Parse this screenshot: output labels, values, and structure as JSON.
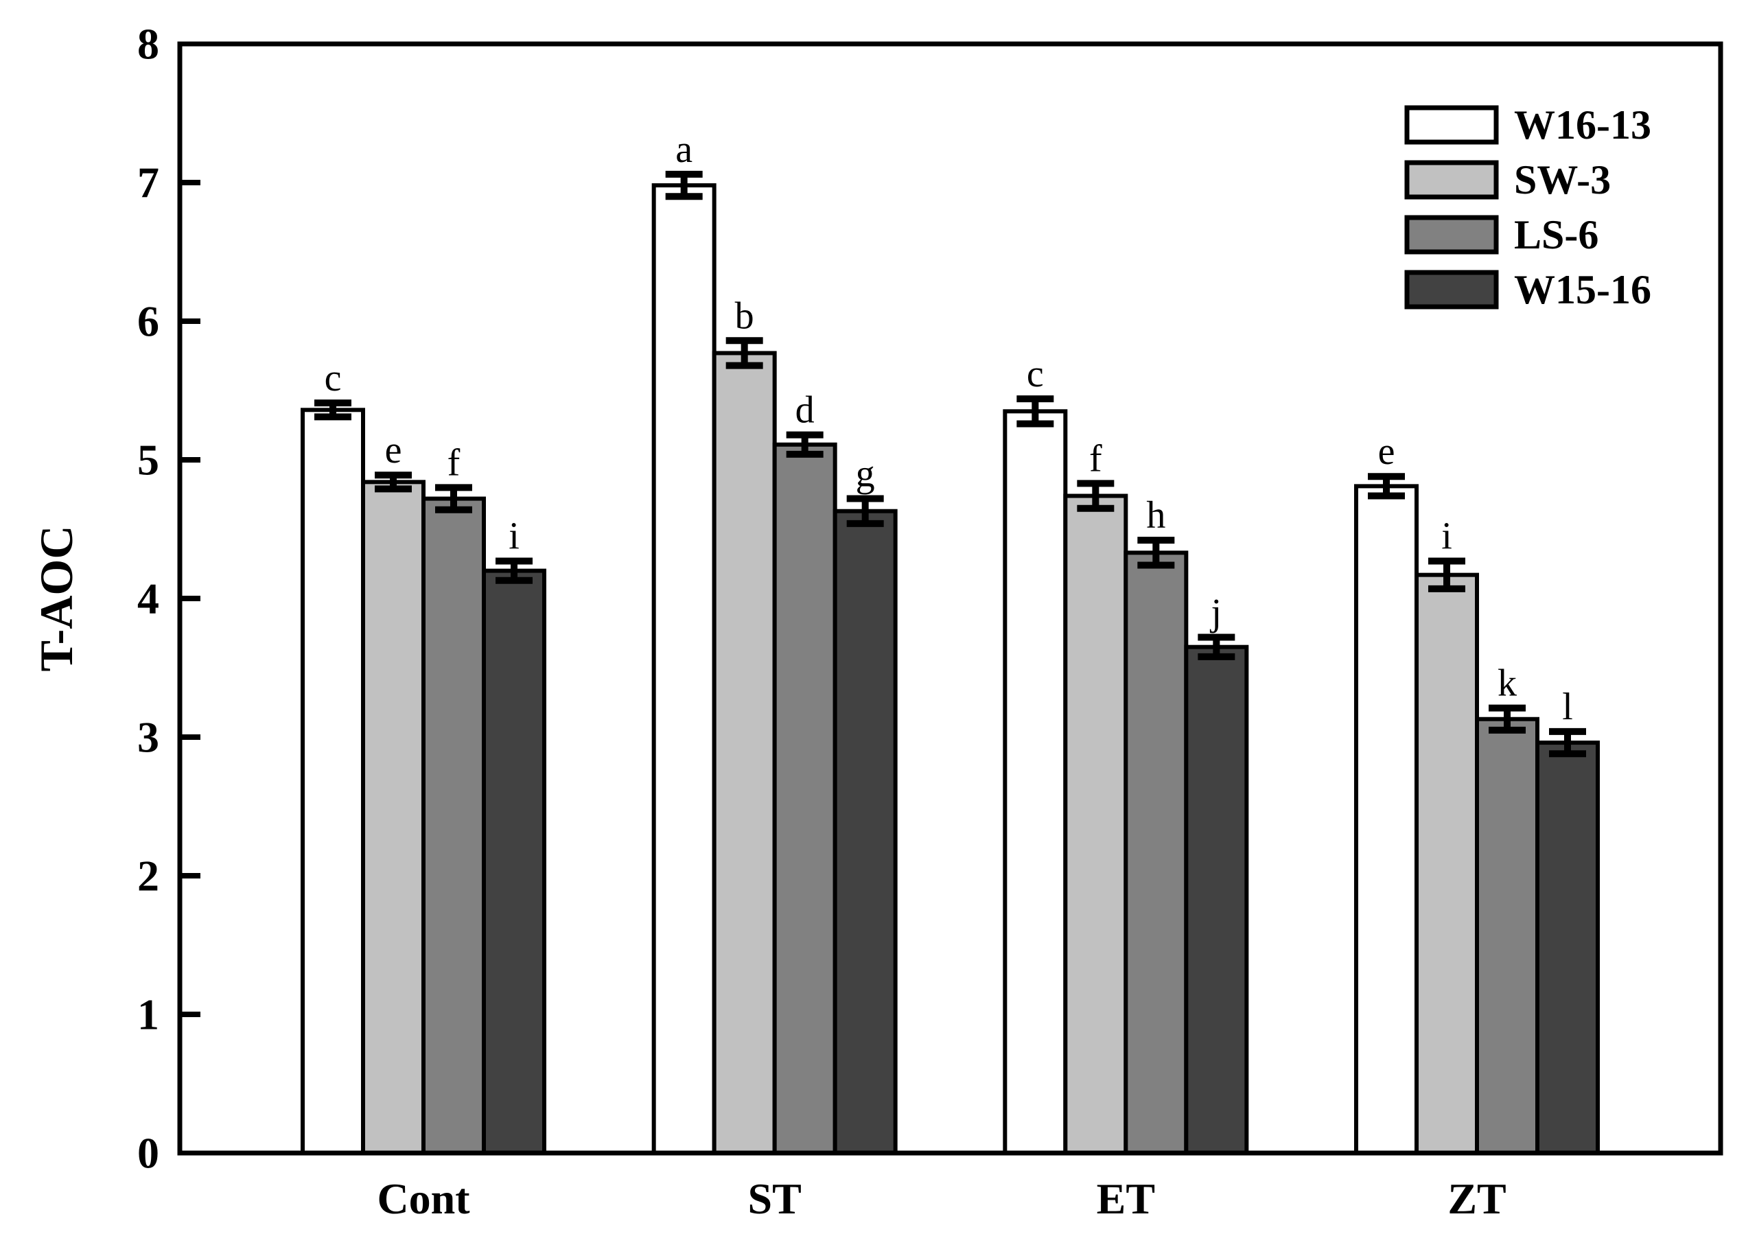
{
  "figure": {
    "background": "#ffffff",
    "ink": "#000000"
  },
  "chart_data": {
    "type": "bar",
    "title": "",
    "xlabel": "",
    "ylabel": "T-AOC",
    "ylim": [
      0,
      8
    ],
    "yticks": [
      "0",
      "1",
      "2",
      "3",
      "4",
      "5",
      "6",
      "7",
      "8"
    ],
    "grid": false,
    "legend_position": "top-right",
    "categories": [
      "Cont",
      "ST",
      "ET",
      "ZT"
    ],
    "series": [
      {
        "name": "W16-13",
        "fill": "#ffffff",
        "values": [
          5.36,
          6.98,
          5.35,
          4.81
        ],
        "errors": [
          0.05,
          0.08,
          0.09,
          0.07
        ],
        "letters": [
          "c",
          "a",
          "c",
          "e"
        ]
      },
      {
        "name": "SW-3",
        "fill": "#c1c1c1",
        "values": [
          4.84,
          5.77,
          4.74,
          4.17
        ],
        "errors": [
          0.05,
          0.09,
          0.09,
          0.1
        ],
        "letters": [
          "e",
          "b",
          "f",
          "i"
        ]
      },
      {
        "name": "LS-6",
        "fill": "#818181",
        "values": [
          4.72,
          5.11,
          4.33,
          3.13
        ],
        "errors": [
          0.08,
          0.07,
          0.09,
          0.08
        ],
        "letters": [
          "f",
          "d",
          "h",
          "k"
        ]
      },
      {
        "name": "W15-16",
        "fill": "#424242",
        "values": [
          4.2,
          4.63,
          3.65,
          2.96
        ],
        "errors": [
          0.07,
          0.09,
          0.07,
          0.08
        ],
        "letters": [
          "i",
          "g",
          "j",
          "l"
        ]
      }
    ]
  }
}
